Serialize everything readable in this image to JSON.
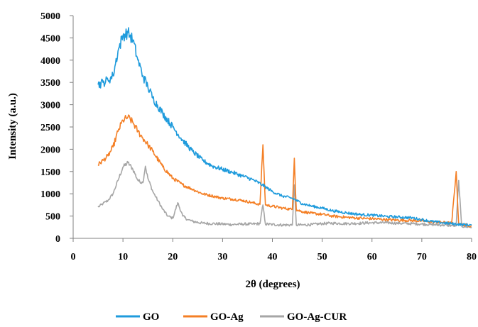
{
  "chart_data": {
    "type": "line",
    "xlabel": "2θ (degrees)",
    "ylabel": "Intensity (a.u.)",
    "xlim": [
      0,
      80
    ],
    "ylim": [
      0,
      5000
    ],
    "xticks": [
      "0",
      "10",
      "20",
      "30",
      "40",
      "50",
      "60",
      "70",
      "80"
    ],
    "yticks": [
      "0",
      "500",
      "1000",
      "1500",
      "2000",
      "2500",
      "3000",
      "3500",
      "4000",
      "4500",
      "5000"
    ],
    "grid": false,
    "legend_position": "bottom",
    "series": [
      {
        "name": "GO",
        "color": "#1f9bdc",
        "x": [
          5,
          6,
          7,
          8,
          9,
          10,
          11,
          12,
          13,
          14,
          15,
          16,
          18,
          20,
          22,
          24,
          26,
          28,
          30,
          32,
          34,
          36,
          38,
          40,
          42,
          44,
          46,
          48,
          50,
          52,
          55,
          58,
          60,
          63,
          65,
          68,
          70,
          72,
          74,
          76,
          78,
          80
        ],
        "y": [
          3450,
          3500,
          3550,
          3650,
          4200,
          4550,
          4620,
          4450,
          4000,
          3650,
          3400,
          3150,
          2800,
          2500,
          2200,
          1950,
          1750,
          1620,
          1550,
          1480,
          1400,
          1320,
          1200,
          1050,
          950,
          900,
          780,
          720,
          680,
          620,
          570,
          530,
          520,
          490,
          480,
          460,
          420,
          380,
          350,
          330,
          310,
          300
        ]
      },
      {
        "name": "GO-Ag",
        "color": "#f47f25",
        "x": [
          5,
          6,
          7,
          8,
          9,
          10,
          11,
          12,
          13,
          14,
          15,
          16,
          18,
          20,
          22,
          24,
          26,
          28,
          30,
          32,
          34,
          36,
          37.5,
          38.1,
          38.6,
          40,
          42,
          44,
          44.4,
          44.8,
          46,
          48,
          50,
          52,
          55,
          58,
          60,
          63,
          65,
          68,
          70,
          72,
          74,
          76,
          76.9,
          77.4,
          78,
          80
        ],
        "y": [
          1650,
          1750,
          1850,
          2050,
          2400,
          2650,
          2720,
          2600,
          2400,
          2250,
          2100,
          1950,
          1600,
          1350,
          1200,
          1100,
          1000,
          950,
          900,
          880,
          850,
          800,
          760,
          2100,
          750,
          720,
          680,
          650,
          1800,
          640,
          600,
          560,
          540,
          500,
          470,
          450,
          440,
          420,
          410,
          400,
          390,
          370,
          360,
          340,
          1500,
          330,
          310,
          280
        ]
      },
      {
        "name": "GO-Ag-CUR",
        "color": "#a6a6a6",
        "x": [
          5,
          6,
          7,
          8,
          9,
          10,
          11,
          12,
          13,
          14,
          14.5,
          15,
          16,
          17,
          18,
          19,
          20,
          21,
          22,
          23,
          24,
          26,
          28,
          30,
          32,
          34,
          36,
          37.5,
          38.1,
          38.6,
          40,
          42,
          44,
          44.4,
          44.8,
          46,
          48,
          50,
          52,
          55,
          58,
          60,
          63,
          65,
          68,
          70,
          72,
          74,
          76,
          76.9,
          77.4,
          78,
          80
        ],
        "y": [
          700,
          780,
          850,
          1000,
          1300,
          1600,
          1700,
          1550,
          1300,
          1250,
          1620,
          1350,
          1050,
          850,
          650,
          500,
          450,
          800,
          500,
          420,
          380,
          340,
          330,
          320,
          310,
          320,
          320,
          330,
          750,
          320,
          310,
          300,
          300,
          1200,
          300,
          300,
          310,
          330,
          340,
          330,
          340,
          350,
          350,
          340,
          330,
          320,
          310,
          300,
          290,
          280,
          1300,
          270,
          250
        ]
      }
    ]
  }
}
